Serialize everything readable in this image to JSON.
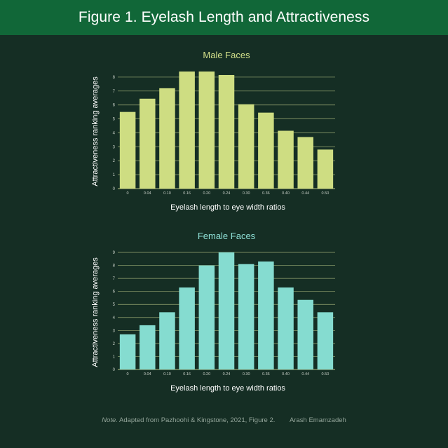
{
  "header": {
    "title": "Figure 1. Eyelash Length and Attractiveness"
  },
  "chart_data": [
    {
      "type": "bar",
      "title": "Male Faces",
      "xlabel": "Eyelash length to eye width ratios",
      "ylabel": "Attractiveness ranking averages",
      "categories": [
        "0",
        "0.04",
        "0.10",
        "0.16",
        "0.20",
        "0.24",
        "0.30",
        "0.36",
        "0.40",
        "0.44",
        "0.50"
      ],
      "values": [
        5.5,
        6.45,
        7.2,
        8.4,
        8.4,
        8.15,
        6.05,
        5.45,
        4.15,
        3.7,
        2.8
      ],
      "yticks": [
        0,
        1,
        2,
        3,
        4,
        5,
        6,
        7,
        8
      ],
      "ylim": [
        0,
        8.4
      ],
      "grid": true,
      "bar_color": "#cedd82",
      "title_color": "#d2e08a"
    },
    {
      "type": "bar",
      "title": "Female Faces",
      "xlabel": "Eyelash length to eye width ratios",
      "ylabel": "Attractiveness ranking averages",
      "categories": [
        "0",
        "0.04",
        "0.10",
        "0.16",
        "0.20",
        "0.24",
        "0.30",
        "0.36",
        "0.40",
        "0.44",
        "0.50"
      ],
      "values": [
        2.7,
        3.4,
        4.4,
        6.3,
        8.0,
        9.0,
        8.1,
        8.3,
        6.3,
        5.35,
        4.4
      ],
      "yticks": [
        0,
        1,
        2,
        3,
        4,
        5,
        6,
        7,
        8,
        9
      ],
      "ylim": [
        0,
        9
      ],
      "grid": true,
      "bar_color": "#85dcd0",
      "title_color": "#8ee0d6"
    }
  ],
  "note": {
    "label": "Note.",
    "text": "Adapted from Pazhoohi & Kingstone, 2021, Figure 2.",
    "author": "Arash Emamzadeh"
  }
}
